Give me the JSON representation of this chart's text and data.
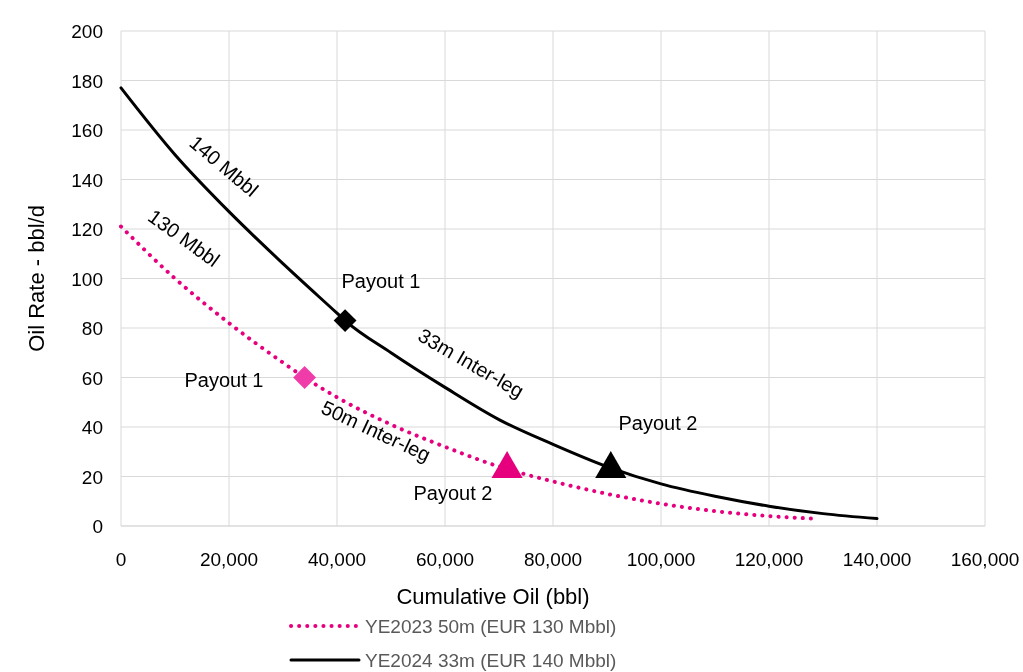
{
  "chart_data": {
    "type": "line",
    "xlabel": "Cumulative Oil (bbl)",
    "ylabel": "Oil Rate - bbl/d",
    "xlim": [
      0,
      160000
    ],
    "xticks": [
      {
        "value": 0,
        "label": "0"
      },
      {
        "value": 20000,
        "label": "20,000"
      },
      {
        "value": 40000,
        "label": "40,000"
      },
      {
        "value": 60000,
        "label": "60,000"
      },
      {
        "value": 80000,
        "label": "80,000"
      },
      {
        "value": 100000,
        "label": "100,000"
      },
      {
        "value": 120000,
        "label": "120,000"
      },
      {
        "value": 140000,
        "label": "140,000"
      },
      {
        "value": 160000,
        "label": "160,000"
      }
    ],
    "ylim": [
      0,
      200
    ],
    "yticks": [
      0,
      20,
      40,
      60,
      80,
      100,
      120,
      140,
      160,
      180,
      200
    ],
    "grid": true,
    "legend": "bottom",
    "series": [
      {
        "name": "YE2023 50m (EUR 130 Mbbl)",
        "color": "#e6007e",
        "line_style": "dotted",
        "marker": "none",
        "x": [
          0,
          10000,
          20000,
          30000,
          34000,
          40000,
          50000,
          60000,
          70000,
          80000,
          90000,
          100000,
          110000,
          120000,
          128000
        ],
        "values": [
          121,
          100,
          82,
          66,
          60,
          52,
          41,
          32,
          24,
          18,
          13,
          9,
          6,
          4,
          3
        ]
      },
      {
        "name": "YE2024 33m (EUR 140 Mbbl)",
        "color": "#000000",
        "line_style": "solid",
        "marker": "none",
        "x": [
          0,
          10000,
          20000,
          30000,
          40000,
          41500,
          50000,
          60000,
          70000,
          80000,
          90000,
          100000,
          110000,
          120000,
          130000,
          140000
        ],
        "values": [
          177,
          150,
          127,
          106,
          86,
          83,
          70,
          56,
          43,
          33,
          24,
          17,
          12,
          8,
          5,
          3
        ]
      },
      {
        "type": "scatter",
        "color": "#f03ca8",
        "marker": "diamond",
        "x": [
          34000
        ],
        "values": [
          60
        ]
      },
      {
        "type": "scatter",
        "color": "#e6007e",
        "marker": "triangle",
        "x": [
          71500
        ],
        "values": [
          23
        ]
      },
      {
        "type": "scatter",
        "color": "#000000",
        "marker": "diamond",
        "x": [
          41500
        ],
        "values": [
          83
        ]
      },
      {
        "type": "scatter",
        "color": "#000000",
        "marker": "triangle",
        "x": [
          90700
        ],
        "values": [
          23
        ]
      }
    ],
    "annotations": [
      "Payout 1",
      "Payout 1",
      "Payout 2",
      "Payout 2",
      "140 Mbbl",
      "130 Mbbl",
      "33m Inter-leg",
      "50m Inter-leg"
    ]
  }
}
